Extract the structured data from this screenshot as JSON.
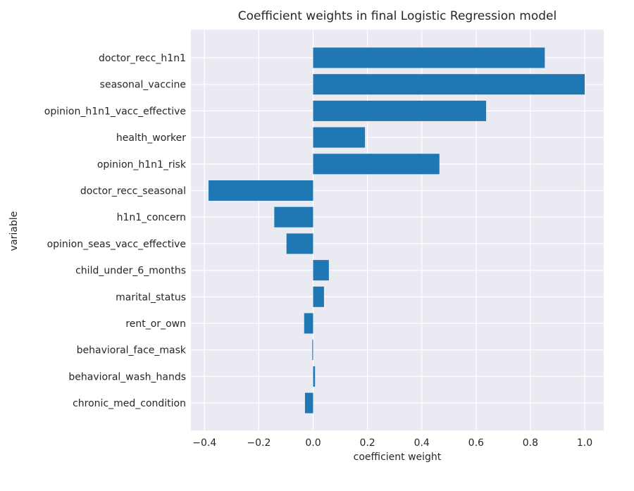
{
  "chart_data": {
    "type": "bar",
    "orientation": "horizontal",
    "title": "Coefficient weights in final Logistic Regression model",
    "xlabel": "coefficient weight",
    "ylabel": "variable",
    "xlim": [
      -0.45,
      1.07
    ],
    "xticks": [
      -0.4,
      -0.2,
      0.0,
      0.2,
      0.4,
      0.6,
      0.8,
      1.0
    ],
    "xtick_labels": [
      "−0.4",
      "−0.2",
      "0.0",
      "0.2",
      "0.4",
      "0.6",
      "0.8",
      "1.0"
    ],
    "grid": true,
    "bar_color": "#1f77b4",
    "background_color": "#eaeaf2",
    "grid_color": "#ffffff",
    "categories": [
      "doctor_recc_h1n1",
      "seasonal_vaccine",
      "opinion_h1n1_vacc_effective",
      "health_worker",
      "opinion_h1n1_risk",
      "doctor_recc_seasonal",
      "h1n1_concern",
      "opinion_seas_vacc_effective",
      "child_under_6_months",
      "marital_status",
      "rent_or_own",
      "behavioral_face_mask",
      "behavioral_wash_hands",
      "chronic_med_condition"
    ],
    "values": [
      0.853,
      1.0,
      0.637,
      0.191,
      0.465,
      -0.385,
      -0.143,
      -0.098,
      0.058,
      0.04,
      -0.033,
      -0.003,
      0.007,
      -0.03
    ]
  }
}
